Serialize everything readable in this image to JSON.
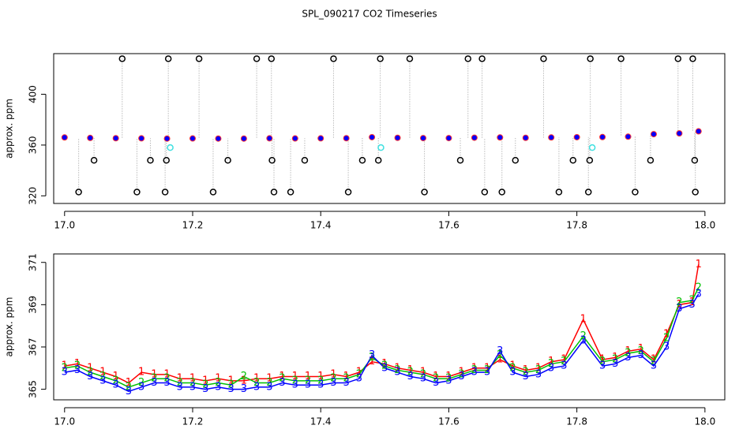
{
  "chart_data": [
    {
      "type": "scatter",
      "title": "SPL_090217  CO2 Timeseries",
      "y_label": "approx. ppm",
      "xlim": [
        16.983,
        18.031
      ],
      "ylim": [
        314,
        432
      ],
      "xticks": [
        {
          "value": 17,
          "label": "17.0"
        },
        17.2,
        17.4,
        17.6,
        17.8,
        {
          "value": 18,
          "label": "18.0"
        }
      ],
      "yticks": [
        320,
        360,
        400
      ],
      "series": [
        {
          "color": "#0000ff",
          "edge": "#ff3030",
          "marker": "filled",
          "x": [
            17,
            17.04,
            17.08,
            17.12,
            17.16,
            17.2,
            17.24,
            17.28,
            17.32,
            17.36,
            17.4,
            17.44,
            17.48,
            17.52,
            17.56,
            17.6,
            17.64,
            17.68,
            17.72,
            17.76,
            17.8,
            17.84,
            17.88,
            17.92,
            17.96,
            17.99
          ],
          "values": [
            366,
            365.6,
            365.4,
            365.3,
            365.1,
            365.2,
            365.1,
            365.1,
            365.3,
            365.2,
            365.3,
            365.4,
            366.2,
            365.7,
            365.5,
            365.5,
            365.8,
            366.0,
            365.7,
            366.0,
            366.2,
            366.3,
            366.6,
            368.6,
            369.2,
            370.8
          ]
        },
        {
          "color": "#000000",
          "marker": "open",
          "stems": true,
          "x": [
            17.09,
            17.162,
            17.21,
            17.3,
            17.323,
            17.42,
            17.493,
            17.539,
            17.63,
            17.652,
            17.748,
            17.821,
            17.869,
            17.958,
            17.981,
            17.022,
            17.113,
            17.157,
            17.232,
            17.327,
            17.353,
            17.443,
            17.562,
            17.656,
            17.683,
            17.772,
            17.818,
            17.891,
            17.985,
            17.046,
            17.134,
            17.159,
            17.255,
            17.324,
            17.375,
            17.465,
            17.49,
            17.618,
            17.704,
            17.794,
            17.82,
            17.915,
            17.984
          ],
          "values": [
            428,
            428,
            428,
            428,
            428,
            428,
            428,
            428,
            428,
            428,
            428,
            428,
            428,
            428,
            428,
            323,
            323,
            323,
            323,
            323,
            323,
            323,
            323,
            323,
            323,
            323,
            323,
            323,
            323,
            348,
            348,
            348,
            348,
            348,
            348,
            348,
            348,
            348,
            348,
            348,
            348,
            348,
            348
          ]
        },
        {
          "color": "#40e0e0",
          "marker": "open",
          "x": [
            17.165,
            17.494,
            17.824
          ],
          "values": [
            358,
            358,
            358
          ]
        }
      ]
    },
    {
      "type": "line",
      "y_label": "approx. ppm",
      "xlim": [
        16.983,
        18.031
      ],
      "ylim": [
        364.5,
        371.4
      ],
      "xticks": [
        {
          "value": 17,
          "label": "17.0"
        },
        17.2,
        17.4,
        17.6,
        17.8,
        {
          "value": 18,
          "label": "18.0"
        }
      ],
      "yticks": [
        365,
        367,
        369,
        371
      ],
      "x": [
        17,
        17.02,
        17.04,
        17.06,
        17.08,
        17.1,
        17.12,
        17.14,
        17.16,
        17.18,
        17.2,
        17.22,
        17.24,
        17.26,
        17.28,
        17.3,
        17.32,
        17.34,
        17.36,
        17.38,
        17.4,
        17.42,
        17.44,
        17.46,
        17.48,
        17.5,
        17.52,
        17.54,
        17.56,
        17.58,
        17.6,
        17.62,
        17.64,
        17.66,
        17.68,
        17.7,
        17.72,
        17.74,
        17.76,
        17.78,
        17.81,
        17.84,
        17.86,
        17.88,
        17.9,
        17.92,
        17.94,
        17.96,
        17.98,
        17.99
      ],
      "series": [
        {
          "name": "1",
          "color": "#ff0000",
          "values": [
            366.1,
            366.2,
            366.0,
            365.8,
            365.6,
            365.3,
            365.8,
            365.7,
            365.7,
            365.5,
            365.5,
            365.4,
            365.5,
            365.4,
            365.4,
            365.5,
            365.5,
            365.6,
            365.6,
            365.6,
            365.6,
            365.7,
            365.6,
            365.8,
            366.3,
            366.2,
            366.0,
            365.9,
            365.8,
            365.6,
            365.6,
            365.8,
            366.0,
            366.0,
            366.4,
            366.1,
            365.9,
            366.0,
            366.3,
            366.4,
            368.3,
            366.4,
            366.5,
            366.8,
            366.9,
            366.4,
            367.6,
            369.0,
            369.1,
            370.9
          ]
        },
        {
          "name": "2",
          "color": "#00c000",
          "values": [
            366.0,
            366.1,
            365.8,
            365.6,
            365.4,
            365.1,
            365.3,
            365.5,
            365.5,
            365.3,
            365.3,
            365.2,
            365.3,
            365.2,
            365.6,
            365.3,
            365.3,
            365.5,
            365.4,
            365.4,
            365.4,
            365.5,
            365.5,
            365.7,
            366.5,
            366.1,
            365.9,
            365.8,
            365.7,
            365.5,
            365.5,
            365.7,
            365.9,
            365.9,
            366.6,
            366.0,
            365.8,
            365.9,
            366.2,
            366.3,
            367.5,
            366.3,
            366.4,
            366.7,
            366.8,
            366.3,
            367.4,
            369.1,
            369.2,
            369.8
          ]
        },
        {
          "name": "3",
          "color": "#0000ff",
          "values": [
            365.8,
            365.9,
            365.6,
            365.4,
            365.2,
            364.9,
            365.1,
            365.3,
            365.3,
            365.1,
            365.1,
            365.0,
            365.1,
            365.0,
            365.0,
            365.1,
            365.1,
            365.3,
            365.2,
            365.2,
            365.2,
            365.3,
            365.3,
            365.5,
            366.6,
            366.0,
            365.8,
            365.6,
            365.5,
            365.3,
            365.4,
            365.6,
            365.8,
            365.8,
            366.8,
            365.8,
            365.6,
            365.7,
            366.0,
            366.1,
            367.3,
            366.1,
            366.2,
            366.5,
            366.6,
            366.1,
            367.0,
            368.8,
            369.0,
            369.5
          ]
        }
      ]
    }
  ]
}
